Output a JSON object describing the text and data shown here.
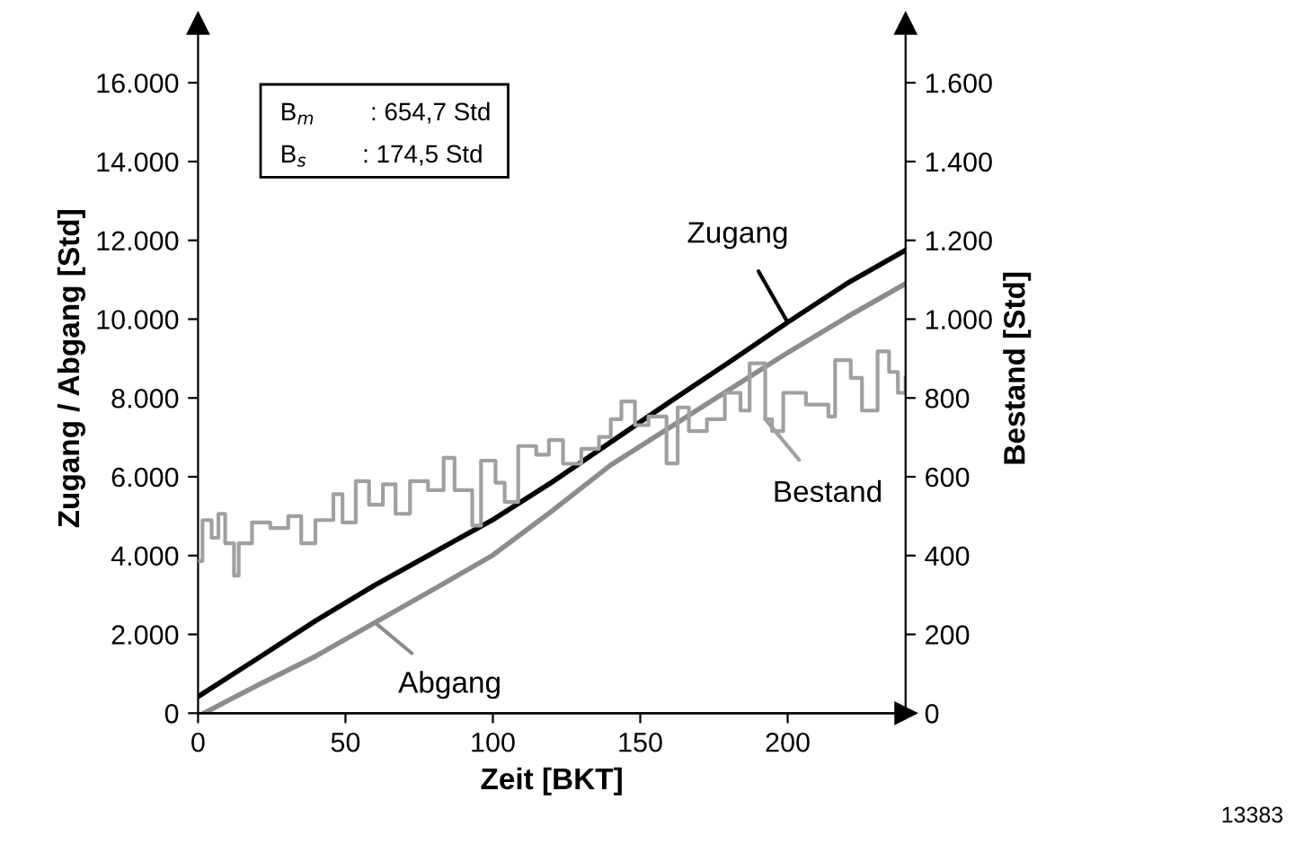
{
  "chart_data": {
    "type": "line",
    "xlabel": "Zeit [BKT]",
    "ylabel": "Zugang / Abgang [Std]",
    "y2label": "Bestand [Std]",
    "xlim": [
      0,
      240
    ],
    "xticks": [
      0,
      50,
      100,
      150,
      200
    ],
    "ylim": [
      0,
      17500
    ],
    "yticks": [
      {
        "value": 0,
        "label": "0"
      },
      {
        "value": 2000,
        "label": "2.000"
      },
      {
        "value": 4000,
        "label": "4.000"
      },
      {
        "value": 6000,
        "label": "6.000"
      },
      {
        "value": 8000,
        "label": "8.000"
      },
      {
        "value": 10000,
        "label": "10.000"
      },
      {
        "value": 12000,
        "label": "12.000"
      },
      {
        "value": 14000,
        "label": "14.000"
      },
      {
        "value": 16000,
        "label": "16.000"
      }
    ],
    "y2lim": [
      0,
      1750
    ],
    "y2ticks": [
      {
        "value": 0,
        "label": "0"
      },
      {
        "value": 200,
        "label": "200"
      },
      {
        "value": 400,
        "label": "400"
      },
      {
        "value": 600,
        "label": "600"
      },
      {
        "value": 800,
        "label": "800"
      },
      {
        "value": 1000,
        "label": "1.000"
      },
      {
        "value": 1200,
        "label": "1.200"
      },
      {
        "value": 1400,
        "label": "1.400"
      },
      {
        "value": 1600,
        "label": "1.600"
      }
    ],
    "grid": false,
    "legend": "right",
    "marker": "none",
    "line_style": "solid",
    "series": [
      {
        "name": "Zugang",
        "color": "#000000",
        "x": [
          0,
          20,
          40,
          60,
          80,
          100,
          120,
          140,
          160,
          180,
          200,
          220,
          240
        ],
        "values": [
          420,
          1380,
          2350,
          3250,
          4080,
          4910,
          5860,
          6880,
          7900,
          8900,
          9920,
          10900,
          11750
        ]
      },
      {
        "name": "Abgang",
        "color": "#8c8c8c",
        "x": [
          2,
          20,
          40,
          60,
          80,
          100,
          120,
          140,
          160,
          180,
          200,
          220,
          240
        ],
        "values": [
          0,
          700,
          1450,
          2300,
          3150,
          4010,
          5130,
          6300,
          7250,
          8200,
          9150,
          10050,
          10900
        ]
      },
      {
        "name": "Bestand",
        "type": "step",
        "axis": "y2",
        "color": "#a0a0a0",
        "x": [
          0,
          1.5,
          4.6,
          6.9,
          9.2,
          12.2,
          13.8,
          18.3,
          24.5,
          30.6,
          35,
          39.8,
          45.9,
          49,
          53.5,
          58,
          62.7,
          67,
          71.9,
          78,
          83.3,
          87,
          93,
          96,
          100.9,
          104,
          108.6,
          114.7,
          119,
          123.8,
          130,
          136,
          140,
          143.6,
          148.2,
          152.8,
          158.9,
          162.7,
          166.5,
          172.6,
          178.7,
          184,
          187.1,
          192.4,
          194.7,
          198.5,
          206.2,
          213.8,
          216.1,
          221.4,
          225.2,
          230.5,
          234.4,
          237.4,
          240
        ],
        "values": [
          386,
          490,
          445,
          506,
          431,
          349,
          431,
          484,
          470,
          500,
          431,
          490,
          556,
          484,
          589,
          529,
          581,
          506,
          589,
          566,
          648,
          566,
          476,
          641,
          585,
          536,
          678,
          656,
          693,
          633,
          671,
          701,
          746,
          791,
          731,
          753,
          634,
          776,
          716,
          746,
          813,
          768,
          888,
          746,
          716,
          813,
          783,
          753,
          896,
          851,
          768,
          918,
          866,
          813,
          850
        ]
      }
    ],
    "annotations": [
      "B$_{m}$        : 654,7 Std",
      "B$_{s}$        : 174,5 Std",
      "13383"
    ]
  }
}
